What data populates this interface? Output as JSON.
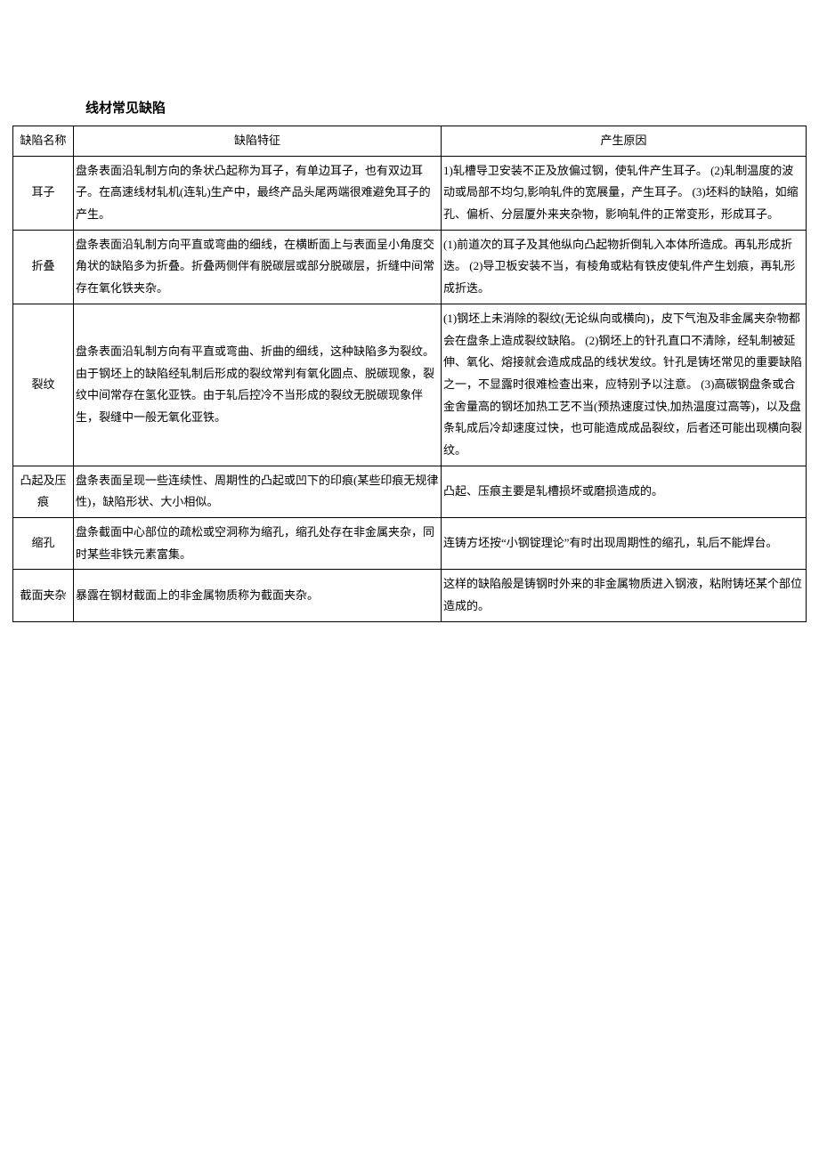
{
  "title": "线材常见缺陷",
  "table": {
    "columns": [
      "缺陷名称",
      "缺陷特征",
      "产生原因"
    ],
    "rows": [
      {
        "name": "耳子",
        "feature": "盘条表面沿轧制方向的条状凸起称为耳子，有单边耳子，也有双边耳子。在高速线材轧机(连轧)生产中，最终产品头尾两端很难避免耳子的产生。",
        "cause": "1)轧槽导卫安装不正及放偏过钢，使轧件产生耳子。\n(2)轧制温度的波动或局部不均匀,影响轧件的宽展量，产生耳子。\n(3)坯料的缺陷，如缩孔、偏析、分层厦外来夹杂物，影响轧件的正常变形，形成耳子。"
      },
      {
        "name": "折叠",
        "feature": "盘条表面沿轧制方向平直或弯曲的细线，在横断面上与表面呈小角度交角状的缺陷多为折叠。折叠两侧伴有脱碳层或部分脱碳层，折缝中间常存在氧化铁夹杂。",
        "cause": "(1)前道次的耳子及其他纵向凸起物折倒轧入本体所造成。再轧形成折迭。\n(2)导卫板安装不当，有棱角或粘有铁皮使轧件产生划痕，再轧形成折迭。"
      },
      {
        "name": "裂纹",
        "feature": "盘条表面沿轧制方向有平直或弯曲、折曲的细线，这种缺陷多为裂纹。由于钢坯上的缺陷经轧制后形成的裂纹常判有氧化圆点、脱碳现象，裂纹中间常存在氢化亚铁。由于轧后控冷不当形成的裂纹无脱碳现象伴生，裂缝中一般无氧化亚铁。",
        "cause": "(1)钢坯上未消除的裂纹(无论纵向或横向)，皮下气泡及非金属夹杂物都会在盘条上造成裂纹缺陷。\n(2)钢坯上的针孔直口不清除，经轧制被延伸、氧化、熔接就会造成成品的线状发纹。针孔是铸坯常见的重要缺陷之一，不显露时很难检查出来，应特别予以注意。\n(3)高碳钢盘条或合金舍量高的钢坯加热工艺不当(预热速度过快,加热温度过高等)，以及盘条轧成后冷却速度过快，也可能造成成品裂纹，后者还可能出现横向裂纹。"
      },
      {
        "name": "凸起及压痕",
        "feature": "盘条表面呈现一些连续性、周期性的凸起或凹下的印痕(某些印痕无规律性)，缺陷形状、大小相似。",
        "cause": "凸起、压痕主要是轧槽损坏或磨损造成的。"
      },
      {
        "name": "缩孔",
        "feature": "盘条截面中心部位的疏松或空洞称为缩孔，缩孔处存在非金属夹杂，同时某些非铁元素富集。",
        "cause": "连铸方坯按“小钢锭理论”有时出现周期性的缩孔，轧后不能焊台。"
      },
      {
        "name": "截面夹杂",
        "feature": "暴露在钢材截面上的非金属物质称为截面夹杂。",
        "cause": "这样的缺陷般是铸钢时外来的非金属物质进入钢液，粘附铸坯某个部位造成的。"
      }
    ]
  },
  "style": {
    "text_color": "#000000",
    "background_color": "#ffffff",
    "border_color": "#000000",
    "title_fontsize": 15,
    "body_fontsize": 13,
    "line_height": 1.9,
    "font_family": "SimSun"
  }
}
